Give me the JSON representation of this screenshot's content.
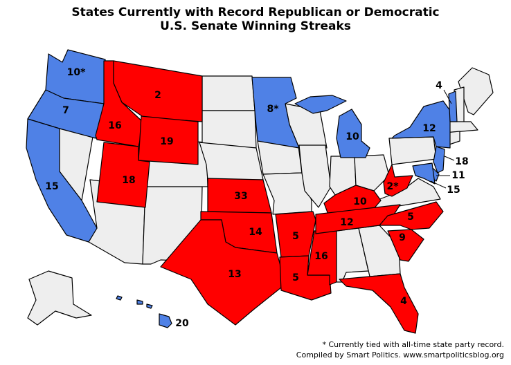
{
  "title": {
    "line1": "States Currently with Record Republican or Democratic",
    "line2": "U.S. Senate Winning Streaks"
  },
  "colors": {
    "republican": "#ff0000",
    "democratic": "#4f81e6",
    "none": "#eeeeee",
    "outline": "#000000"
  },
  "states": [
    {
      "id": "WA",
      "party": "democratic",
      "streak": "10*"
    },
    {
      "id": "OR",
      "party": "democratic",
      "streak": "7"
    },
    {
      "id": "CA",
      "party": "democratic",
      "streak": "15"
    },
    {
      "id": "ID",
      "party": "republican",
      "streak": "16"
    },
    {
      "id": "MT",
      "party": "republican",
      "streak": "2"
    },
    {
      "id": "WY",
      "party": "republican",
      "streak": "19"
    },
    {
      "id": "UT",
      "party": "republican",
      "streak": "18"
    },
    {
      "id": "KS",
      "party": "republican",
      "streak": "33"
    },
    {
      "id": "OK",
      "party": "republican",
      "streak": "14"
    },
    {
      "id": "TX",
      "party": "republican",
      "streak": "13"
    },
    {
      "id": "MN",
      "party": "democratic",
      "streak": "8*"
    },
    {
      "id": "MI",
      "party": "democratic",
      "streak": "10"
    },
    {
      "id": "AR",
      "party": "republican",
      "streak": "5"
    },
    {
      "id": "LA",
      "party": "republican",
      "streak": "5"
    },
    {
      "id": "MS",
      "party": "republican",
      "streak": "16"
    },
    {
      "id": "KY",
      "party": "republican",
      "streak": "10"
    },
    {
      "id": "TN",
      "party": "republican",
      "streak": "12"
    },
    {
      "id": "WV",
      "party": "republican",
      "streak": "2*"
    },
    {
      "id": "NC",
      "party": "republican",
      "streak": "5"
    },
    {
      "id": "SC",
      "party": "republican",
      "streak": "9"
    },
    {
      "id": "FL",
      "party": "republican",
      "streak": "4"
    },
    {
      "id": "NY",
      "party": "democratic",
      "streak": "12"
    },
    {
      "id": "NJ",
      "party": "democratic",
      "streak": "18"
    },
    {
      "id": "DE",
      "party": "democratic",
      "streak": "11"
    },
    {
      "id": "MD",
      "party": "democratic",
      "streak": "15"
    },
    {
      "id": "VT",
      "party": "democratic",
      "streak": "4"
    },
    {
      "id": "HI",
      "party": "democratic",
      "streak": "20"
    }
  ],
  "footnote": "* Currently tied with all-time state party record.",
  "credit": "Compiled by Smart Politics. www.smartpoliticsblog.org"
}
